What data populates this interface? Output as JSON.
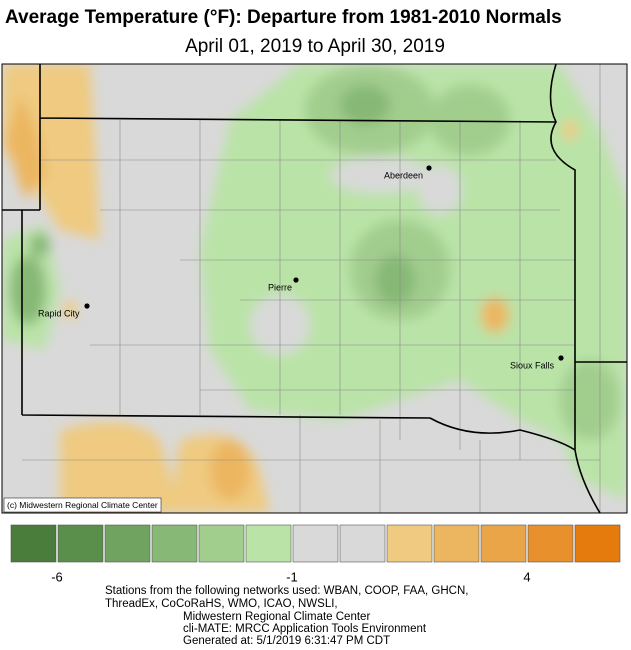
{
  "title": "Average Temperature (°F): Departure from 1981-2010 Normals",
  "subtitle": "April 01, 2019 to April 30, 2019",
  "map": {
    "cities": [
      "Aberdeen",
      "Pierre",
      "Rapid City",
      "Sioux Falls"
    ],
    "credit": "(c) Midwestern Regional Climate Center"
  },
  "legend": {
    "colors": [
      "#4a7c3b",
      "#5a8e4b",
      "#70a35f",
      "#87b876",
      "#a1cd8d",
      "#bae3a7",
      "#d9d9d9",
      "#d9d9d9",
      "#efca80",
      "#ecb660",
      "#eaa548",
      "#e8902b",
      "#e57b0c"
    ],
    "range": [
      -7,
      6
    ],
    "ticks": [
      -6,
      -1,
      4
    ]
  },
  "footer": [
    "Stations from the following networks used: WBAN, COOP, FAA, GHCN,",
    "ThreadEx, CoCoRaHS, WMO, ICAO, NWSLI,",
    "Midwestern Regional Climate Center",
    "cli-MATE: MRCC Application Tools Environment",
    "Generated at: 5/1/2019 6:31:47 PM CDT"
  ]
}
